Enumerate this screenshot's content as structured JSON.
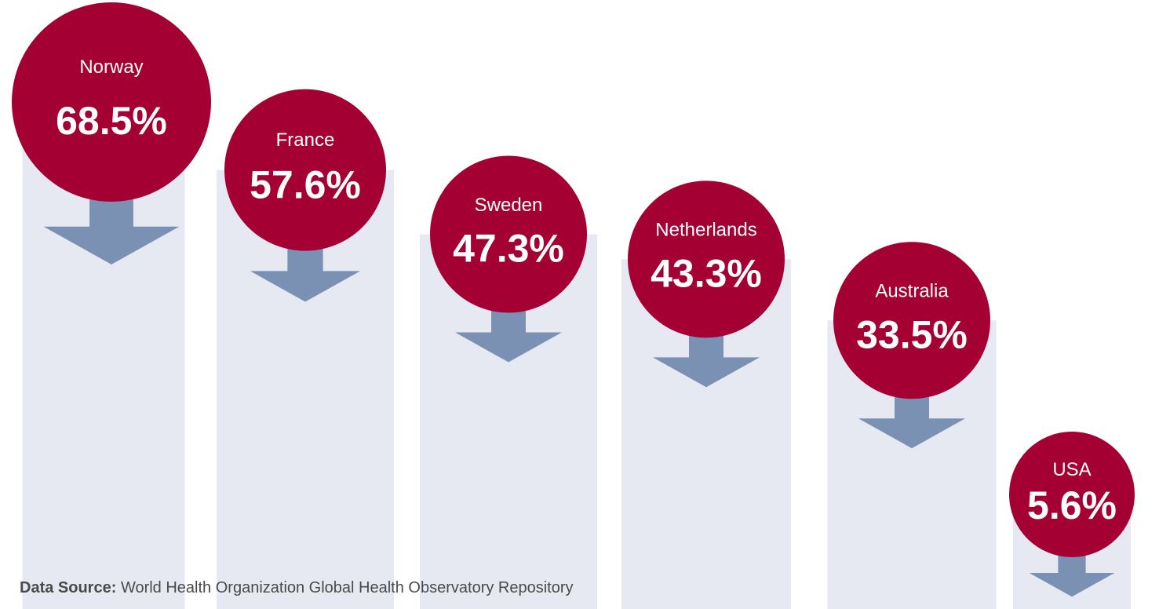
{
  "chart_data": {
    "type": "bubble-drop",
    "categories": [
      "Norway",
      "France",
      "Sweden",
      "Netherlands",
      "Australia",
      "USA"
    ],
    "values": [
      68.5,
      57.6,
      47.3,
      43.3,
      33.5,
      5.6
    ],
    "value_labels": [
      "68.5%",
      "57.6%",
      "47.3%",
      "43.3%",
      "33.5%",
      "5.6%"
    ],
    "color": "#a50034",
    "source_label": "Data Source:",
    "source": "World Health Organization Global Health Observatory Repository"
  }
}
